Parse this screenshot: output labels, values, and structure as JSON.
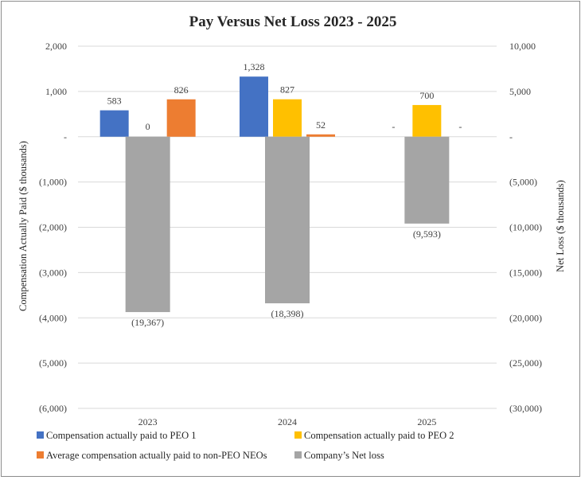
{
  "chart_data": {
    "type": "bar",
    "title": "Pay Versus Net Loss 2023 - 2025",
    "categories": [
      "2023",
      "2024",
      "2025"
    ],
    "ylabel": "Compensation Actually Paid ($ thousands)",
    "y2label": "Net Loss ($ thousands)",
    "ylim": [
      -6000,
      2000
    ],
    "y2lim": [
      -30000,
      10000
    ],
    "yticks": [
      {
        "value": 2000,
        "label": "2,000"
      },
      {
        "value": 1000,
        "label": "1,000"
      },
      {
        "value": 0,
        "label": "-"
      },
      {
        "value": -1000,
        "label": "(1,000)"
      },
      {
        "value": -2000,
        "label": "(2,000)"
      },
      {
        "value": -3000,
        "label": "(3,000)"
      },
      {
        "value": -4000,
        "label": "(4,000)"
      },
      {
        "value": -5000,
        "label": "(5,000)"
      },
      {
        "value": -6000,
        "label": "(6,000)"
      }
    ],
    "y2ticks": [
      {
        "value": 10000,
        "label": "10,000"
      },
      {
        "value": 5000,
        "label": "5,000"
      },
      {
        "value": 0,
        "label": "-"
      },
      {
        "value": -5000,
        "label": "(5,000)"
      },
      {
        "value": -10000,
        "label": "(10,000)"
      },
      {
        "value": -15000,
        "label": "(15,000)"
      },
      {
        "value": -20000,
        "label": "(20,000)"
      },
      {
        "value": -25000,
        "label": "(25,000)"
      },
      {
        "value": -30000,
        "label": "(30,000)"
      }
    ],
    "series": [
      {
        "name": "Compensation actually paid to PEO 1",
        "axis": "left",
        "color": "#4472C4",
        "values": [
          583,
          1328,
          null
        ],
        "labels": [
          "583",
          "1,328",
          "-"
        ]
      },
      {
        "name": "Compensation actually paid to PEO 2",
        "axis": "left",
        "color": "#FFC000",
        "values": [
          0,
          827,
          700
        ],
        "labels": [
          "0",
          "827",
          "700"
        ]
      },
      {
        "name": "Average compensation actually paid to non-PEO NEOs",
        "axis": "left",
        "color": "#ED7D31",
        "values": [
          826,
          52,
          null
        ],
        "labels": [
          "826",
          "52",
          "-"
        ]
      },
      {
        "name": "Company’s Net loss",
        "axis": "right",
        "color": "#A5A5A5",
        "values": [
          -19367,
          -18398,
          -9593
        ],
        "labels": [
          "(19,367)",
          "(18,398)",
          "(9,593)"
        ]
      }
    ],
    "grid": true,
    "legend_position": "bottom"
  }
}
